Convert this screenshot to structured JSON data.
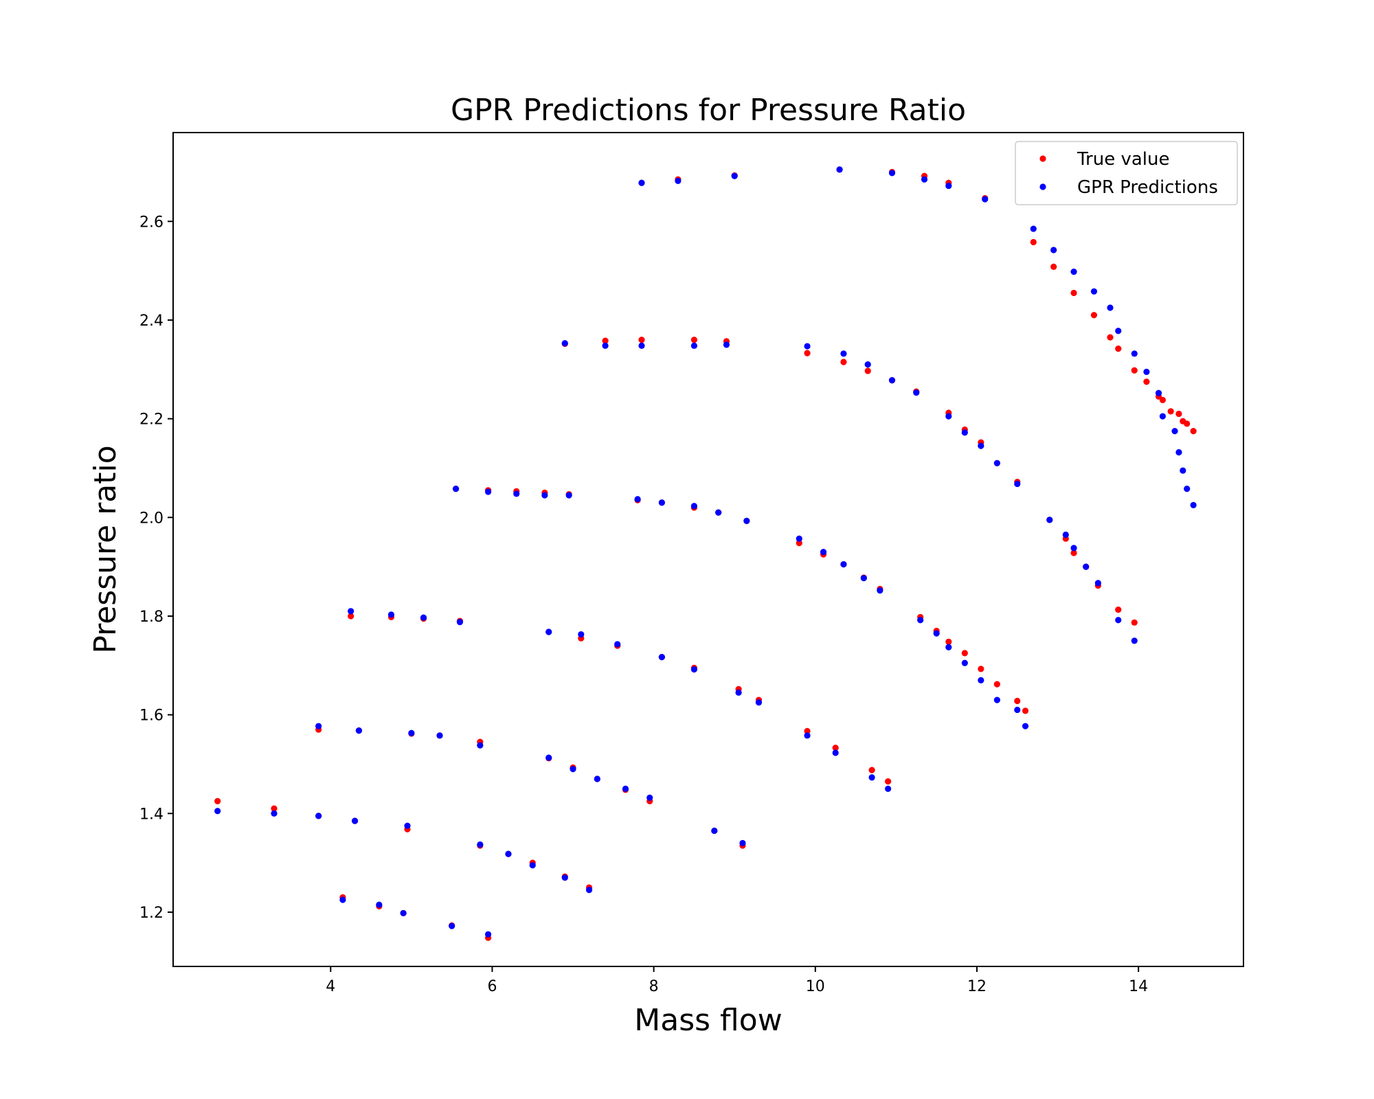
{
  "chart_data": {
    "type": "scatter",
    "title": "GPR Predictions for Pressure Ratio",
    "xlabel": "Mass flow",
    "ylabel": "Pressure ratio",
    "xlim": [
      2.05,
      15.3
    ],
    "ylim": [
      1.09,
      2.78
    ],
    "xticks": [
      4,
      6,
      8,
      10,
      12,
      14
    ],
    "yticks": [
      1.2,
      1.4,
      1.6,
      1.8,
      2.0,
      2.2,
      2.4,
      2.6
    ],
    "legend_position": "top-right",
    "grid": false,
    "series": [
      {
        "name": "True value",
        "color": "#ff0000",
        "points": [
          [
            2.6,
            1.425
          ],
          [
            3.3,
            1.41
          ],
          [
            3.85,
            1.395
          ],
          [
            4.3,
            1.385
          ],
          [
            4.95,
            1.368
          ],
          [
            4.15,
            1.23
          ],
          [
            4.6,
            1.212
          ],
          [
            4.9,
            1.198
          ],
          [
            5.5,
            1.173
          ],
          [
            5.95,
            1.148
          ],
          [
            5.85,
            1.335
          ],
          [
            6.2,
            1.318
          ],
          [
            6.5,
            1.3
          ],
          [
            6.9,
            1.272
          ],
          [
            7.2,
            1.25
          ],
          [
            3.85,
            1.57
          ],
          [
            4.35,
            1.568
          ],
          [
            5.0,
            1.562
          ],
          [
            5.35,
            1.558
          ],
          [
            5.85,
            1.545
          ],
          [
            6.7,
            1.512
          ],
          [
            7.0,
            1.493
          ],
          [
            7.3,
            1.47
          ],
          [
            7.65,
            1.448
          ],
          [
            7.95,
            1.425
          ],
          [
            8.75,
            1.365
          ],
          [
            9.1,
            1.335
          ],
          [
            4.25,
            1.8
          ],
          [
            4.75,
            1.798
          ],
          [
            5.15,
            1.795
          ],
          [
            5.6,
            1.79
          ],
          [
            6.7,
            1.768
          ],
          [
            7.1,
            1.755
          ],
          [
            7.55,
            1.74
          ],
          [
            8.1,
            1.717
          ],
          [
            8.5,
            1.695
          ],
          [
            9.05,
            1.652
          ],
          [
            9.3,
            1.63
          ],
          [
            9.9,
            1.567
          ],
          [
            10.25,
            1.533
          ],
          [
            10.7,
            1.488
          ],
          [
            10.9,
            1.465
          ],
          [
            5.55,
            2.058
          ],
          [
            5.95,
            2.055
          ],
          [
            6.3,
            2.053
          ],
          [
            6.65,
            2.05
          ],
          [
            6.95,
            2.047
          ],
          [
            7.8,
            2.035
          ],
          [
            8.1,
            2.03
          ],
          [
            8.5,
            2.02
          ],
          [
            8.8,
            2.01
          ],
          [
            9.15,
            1.993
          ],
          [
            9.8,
            1.948
          ],
          [
            10.1,
            1.925
          ],
          [
            10.35,
            1.905
          ],
          [
            10.6,
            1.878
          ],
          [
            10.8,
            1.855
          ],
          [
            11.3,
            1.798
          ],
          [
            11.5,
            1.77
          ],
          [
            11.65,
            1.748
          ],
          [
            11.85,
            1.725
          ],
          [
            12.05,
            1.693
          ],
          [
            12.25,
            1.662
          ],
          [
            12.5,
            1.628
          ],
          [
            12.6,
            1.608
          ],
          [
            6.9,
            2.352
          ],
          [
            7.4,
            2.358
          ],
          [
            7.85,
            2.36
          ],
          [
            8.5,
            2.36
          ],
          [
            8.9,
            2.357
          ],
          [
            9.9,
            2.333
          ],
          [
            10.35,
            2.315
          ],
          [
            10.65,
            2.297
          ],
          [
            10.95,
            2.278
          ],
          [
            11.25,
            2.255
          ],
          [
            11.65,
            2.212
          ],
          [
            11.85,
            2.178
          ],
          [
            12.05,
            2.152
          ],
          [
            12.25,
            2.11
          ],
          [
            12.5,
            2.072
          ],
          [
            12.9,
            1.995
          ],
          [
            13.1,
            1.957
          ],
          [
            13.2,
            1.928
          ],
          [
            13.35,
            1.9
          ],
          [
            13.5,
            1.862
          ],
          [
            13.75,
            1.813
          ],
          [
            13.95,
            1.787
          ],
          [
            7.85,
            2.678
          ],
          [
            8.3,
            2.685
          ],
          [
            9.0,
            2.693
          ],
          [
            10.3,
            2.705
          ],
          [
            10.95,
            2.7
          ],
          [
            11.35,
            2.692
          ],
          [
            11.65,
            2.678
          ],
          [
            12.1,
            2.647
          ],
          [
            12.7,
            2.558
          ],
          [
            12.95,
            2.508
          ],
          [
            13.2,
            2.455
          ],
          [
            13.45,
            2.41
          ],
          [
            13.65,
            2.365
          ],
          [
            13.75,
            2.342
          ],
          [
            13.95,
            2.298
          ],
          [
            14.1,
            2.275
          ],
          [
            14.25,
            2.245
          ],
          [
            14.3,
            2.238
          ],
          [
            14.4,
            2.215
          ],
          [
            14.5,
            2.21
          ],
          [
            14.55,
            2.195
          ],
          [
            14.6,
            2.19
          ],
          [
            14.68,
            2.175
          ]
        ]
      },
      {
        "name": "GPR Predictions",
        "color": "#0000ff",
        "points": [
          [
            2.6,
            1.405
          ],
          [
            3.3,
            1.4
          ],
          [
            3.85,
            1.395
          ],
          [
            4.3,
            1.385
          ],
          [
            4.95,
            1.375
          ],
          [
            4.15,
            1.225
          ],
          [
            4.6,
            1.215
          ],
          [
            4.9,
            1.198
          ],
          [
            5.5,
            1.172
          ],
          [
            5.95,
            1.155
          ],
          [
            5.85,
            1.337
          ],
          [
            6.2,
            1.318
          ],
          [
            6.5,
            1.295
          ],
          [
            6.9,
            1.27
          ],
          [
            7.2,
            1.245
          ],
          [
            3.85,
            1.577
          ],
          [
            4.35,
            1.568
          ],
          [
            5.0,
            1.563
          ],
          [
            5.35,
            1.558
          ],
          [
            5.85,
            1.538
          ],
          [
            6.7,
            1.513
          ],
          [
            7.0,
            1.49
          ],
          [
            7.3,
            1.47
          ],
          [
            7.65,
            1.45
          ],
          [
            7.95,
            1.432
          ],
          [
            8.75,
            1.365
          ],
          [
            9.1,
            1.34
          ],
          [
            4.25,
            1.81
          ],
          [
            4.75,
            1.803
          ],
          [
            5.15,
            1.797
          ],
          [
            5.6,
            1.788
          ],
          [
            6.7,
            1.768
          ],
          [
            7.1,
            1.763
          ],
          [
            7.55,
            1.743
          ],
          [
            8.1,
            1.717
          ],
          [
            8.5,
            1.692
          ],
          [
            9.05,
            1.645
          ],
          [
            9.3,
            1.625
          ],
          [
            9.9,
            1.558
          ],
          [
            10.25,
            1.523
          ],
          [
            10.7,
            1.473
          ],
          [
            10.9,
            1.45
          ],
          [
            5.55,
            2.058
          ],
          [
            5.95,
            2.052
          ],
          [
            6.3,
            2.048
          ],
          [
            6.65,
            2.045
          ],
          [
            6.95,
            2.045
          ],
          [
            7.8,
            2.037
          ],
          [
            8.1,
            2.03
          ],
          [
            8.5,
            2.023
          ],
          [
            8.8,
            2.01
          ],
          [
            9.15,
            1.993
          ],
          [
            9.8,
            1.957
          ],
          [
            10.1,
            1.93
          ],
          [
            10.35,
            1.905
          ],
          [
            10.6,
            1.877
          ],
          [
            10.8,
            1.852
          ],
          [
            11.3,
            1.792
          ],
          [
            11.5,
            1.765
          ],
          [
            11.65,
            1.737
          ],
          [
            11.85,
            1.705
          ],
          [
            12.05,
            1.67
          ],
          [
            12.25,
            1.63
          ],
          [
            12.5,
            1.61
          ],
          [
            12.6,
            1.577
          ],
          [
            6.9,
            2.353
          ],
          [
            7.4,
            2.348
          ],
          [
            7.85,
            2.348
          ],
          [
            8.5,
            2.348
          ],
          [
            8.9,
            2.35
          ],
          [
            9.9,
            2.347
          ],
          [
            10.35,
            2.332
          ],
          [
            10.65,
            2.31
          ],
          [
            10.95,
            2.278
          ],
          [
            11.25,
            2.253
          ],
          [
            11.65,
            2.205
          ],
          [
            11.85,
            2.172
          ],
          [
            12.05,
            2.145
          ],
          [
            12.25,
            2.11
          ],
          [
            12.5,
            2.068
          ],
          [
            12.9,
            1.995
          ],
          [
            13.1,
            1.965
          ],
          [
            13.2,
            1.938
          ],
          [
            13.35,
            1.9
          ],
          [
            13.5,
            1.867
          ],
          [
            13.75,
            1.792
          ],
          [
            13.95,
            1.75
          ],
          [
            7.85,
            2.678
          ],
          [
            8.3,
            2.682
          ],
          [
            9.0,
            2.692
          ],
          [
            10.3,
            2.705
          ],
          [
            10.95,
            2.698
          ],
          [
            11.35,
            2.685
          ],
          [
            11.65,
            2.672
          ],
          [
            12.1,
            2.645
          ],
          [
            12.7,
            2.585
          ],
          [
            12.95,
            2.542
          ],
          [
            13.2,
            2.498
          ],
          [
            13.45,
            2.458
          ],
          [
            13.65,
            2.425
          ],
          [
            13.75,
            2.378
          ],
          [
            13.95,
            2.332
          ],
          [
            14.1,
            2.295
          ],
          [
            14.25,
            2.252
          ],
          [
            14.3,
            2.205
          ],
          [
            14.45,
            2.175
          ],
          [
            14.5,
            2.132
          ],
          [
            14.55,
            2.095
          ],
          [
            14.6,
            2.058
          ],
          [
            14.68,
            2.025
          ]
        ]
      }
    ]
  }
}
